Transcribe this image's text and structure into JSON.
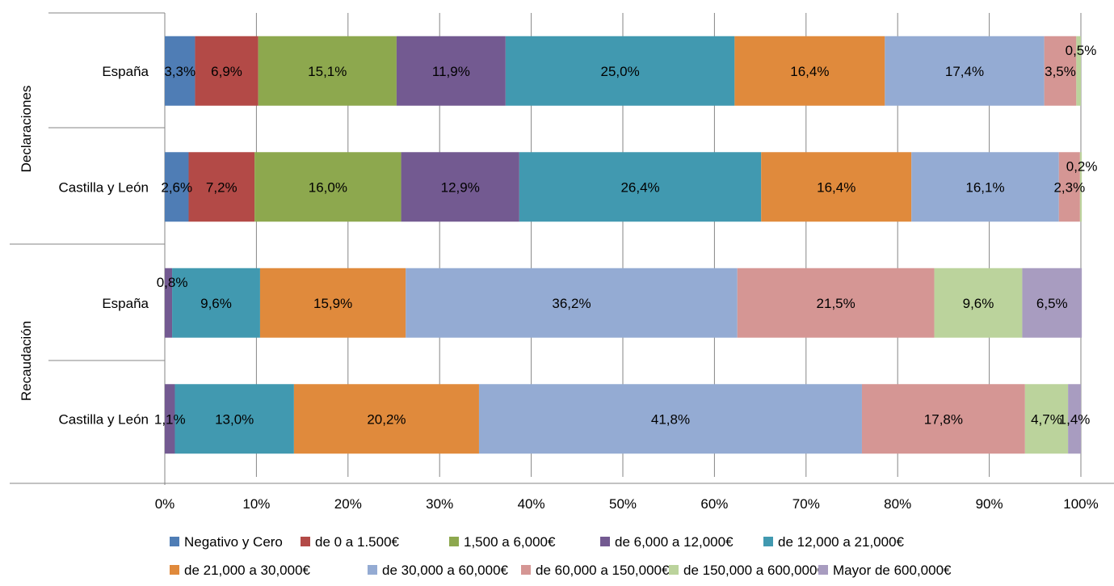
{
  "chart_data": {
    "type": "bar",
    "orientation": "horizontal",
    "stacked": "percent",
    "groups": [
      {
        "label": "Declaraciones",
        "rows": [
          0,
          1
        ]
      },
      {
        "label": "Recaudación",
        "rows": [
          2,
          3
        ]
      }
    ],
    "categories": [
      "España",
      "Castilla y León",
      "España",
      "Castilla y León"
    ],
    "series": [
      {
        "name": "Negativo y Cero",
        "color": "#4F7DB5",
        "values": [
          3.3,
          2.6,
          0.0,
          0.0
        ],
        "labels": [
          "3,3%",
          "2,6%",
          "",
          ""
        ]
      },
      {
        "name": "de 0 a 1.500€",
        "color": "#B34A47",
        "values": [
          6.9,
          7.2,
          0.0,
          0.0
        ],
        "labels": [
          "6,9%",
          "7,2%",
          "",
          ""
        ]
      },
      {
        "name": "1,500 a 6,000€",
        "color": "#8DA84E",
        "values": [
          15.1,
          16.0,
          0.0,
          0.0
        ],
        "labels": [
          "15,1%",
          "16,0%",
          "",
          ""
        ]
      },
      {
        "name": "de 6,000 a 12,000€",
        "color": "#735A91",
        "values": [
          11.9,
          12.9,
          0.8,
          1.1
        ],
        "labels": [
          "11,9%",
          "12,9%",
          "0,8%",
          "1,1%"
        ]
      },
      {
        "name": "de 12,000 a 21,000€",
        "color": "#4199B0",
        "values": [
          25.0,
          26.4,
          9.6,
          13.0
        ],
        "labels": [
          "25,0%",
          "26,4%",
          "9,6%",
          "13,0%"
        ]
      },
      {
        "name": "de 21,000 a 30,000€",
        "color": "#E08A3C",
        "values": [
          16.4,
          16.4,
          15.9,
          20.2
        ],
        "labels": [
          "16,4%",
          "16,4%",
          "15,9%",
          "20,2%"
        ]
      },
      {
        "name": "de 30,000 a 60,000€",
        "color": "#94ABD3",
        "values": [
          17.4,
          16.1,
          36.2,
          41.8
        ],
        "labels": [
          "17,4%",
          "16,1%",
          "36,2%",
          "41,8%"
        ]
      },
      {
        "name": "de 60,000 a 150,000€",
        "color": "#D59694",
        "values": [
          3.5,
          2.3,
          21.5,
          17.8
        ],
        "labels": [
          "3,5%",
          "2,3%",
          "21,5%",
          "17,8%"
        ]
      },
      {
        "name": "de 150,000 a 600,000€",
        "color": "#BBD39C",
        "values": [
          0.5,
          0.2,
          9.6,
          4.7
        ],
        "labels": [
          "0,5%",
          "0,2%",
          "9,6%",
          "4,7%"
        ]
      },
      {
        "name": "Mayor de 600,000€",
        "color": "#A89CC0",
        "values": [
          0.0,
          0.0,
          6.5,
          1.4
        ],
        "labels": [
          "",
          "",
          "6,5%",
          "1,4%"
        ]
      }
    ],
    "xticks": [
      "0%",
      "10%",
      "20%",
      "30%",
      "40%",
      "50%",
      "60%",
      "70%",
      "80%",
      "90%",
      "100%"
    ],
    "xlim": [
      0,
      100
    ],
    "grid": true,
    "legend": "bottom"
  }
}
